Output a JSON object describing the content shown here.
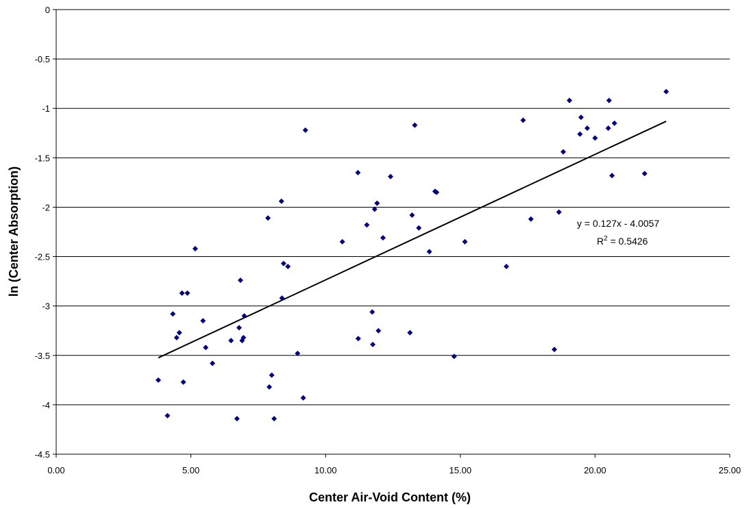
{
  "chart_data": {
    "type": "scatter",
    "title": "",
    "xlabel": "Center Air-Void Content (%)",
    "ylabel": "ln (Center Absorption)",
    "xlim": [
      0,
      25
    ],
    "ylim": [
      -4.5,
      0
    ],
    "x_ticks": [
      "0.00",
      "5.00",
      "10.00",
      "15.00",
      "20.00",
      "25.00"
    ],
    "y_ticks": [
      "0",
      "-0.5",
      "-1",
      "-1.5",
      "-2",
      "-2.5",
      "-3",
      "-3.5",
      "-4",
      "-4.5"
    ],
    "grid": "horizontal",
    "colors": {
      "points": "#000080",
      "trendline": "#000000",
      "grid": "#000000"
    },
    "series": [
      {
        "points": [
          {
            "x": 3.79,
            "y": -3.75
          },
          {
            "x": 4.13,
            "y": -4.11
          },
          {
            "x": 4.33,
            "y": -3.08
          },
          {
            "x": 4.47,
            "y": -3.32
          },
          {
            "x": 4.57,
            "y": -3.27
          },
          {
            "x": 4.67,
            "y": -2.87
          },
          {
            "x": 4.72,
            "y": -3.77
          },
          {
            "x": 4.87,
            "y": -2.87
          },
          {
            "x": 5.16,
            "y": -2.42
          },
          {
            "x": 5.45,
            "y": -3.15
          },
          {
            "x": 5.55,
            "y": -3.42
          },
          {
            "x": 5.8,
            "y": -3.58
          },
          {
            "x": 6.49,
            "y": -3.35
          },
          {
            "x": 6.71,
            "y": -4.14
          },
          {
            "x": 6.79,
            "y": -3.22
          },
          {
            "x": 6.84,
            "y": -2.74
          },
          {
            "x": 6.9,
            "y": -3.35
          },
          {
            "x": 6.95,
            "y": -3.32
          },
          {
            "x": 6.98,
            "y": -3.1
          },
          {
            "x": 7.86,
            "y": -2.11
          },
          {
            "x": 7.91,
            "y": -3.82
          },
          {
            "x": 8.0,
            "y": -3.7
          },
          {
            "x": 8.09,
            "y": -4.14
          },
          {
            "x": 8.36,
            "y": -1.94
          },
          {
            "x": 8.38,
            "y": -2.92
          },
          {
            "x": 8.44,
            "y": -2.57
          },
          {
            "x": 8.6,
            "y": -2.6
          },
          {
            "x": 8.96,
            "y": -3.48
          },
          {
            "x": 9.17,
            "y": -3.93
          },
          {
            "x": 9.25,
            "y": -1.22
          },
          {
            "x": 10.62,
            "y": -2.35
          },
          {
            "x": 11.2,
            "y": -1.65
          },
          {
            "x": 11.21,
            "y": -3.33
          },
          {
            "x": 11.53,
            "y": -2.18
          },
          {
            "x": 11.73,
            "y": -3.06
          },
          {
            "x": 11.75,
            "y": -3.39
          },
          {
            "x": 11.82,
            "y": -2.02
          },
          {
            "x": 11.91,
            "y": -1.96
          },
          {
            "x": 11.96,
            "y": -3.25
          },
          {
            "x": 12.13,
            "y": -2.31
          },
          {
            "x": 12.41,
            "y": -1.69
          },
          {
            "x": 13.13,
            "y": -3.27
          },
          {
            "x": 13.21,
            "y": -2.08
          },
          {
            "x": 13.31,
            "y": -1.17
          },
          {
            "x": 13.46,
            "y": -2.21
          },
          {
            "x": 13.85,
            "y": -2.45
          },
          {
            "x": 14.06,
            "y": -1.84
          },
          {
            "x": 14.12,
            "y": -1.85
          },
          {
            "x": 14.77,
            "y": -3.51
          },
          {
            "x": 15.17,
            "y": -2.35
          },
          {
            "x": 16.71,
            "y": -2.6
          },
          {
            "x": 17.33,
            "y": -1.12
          },
          {
            "x": 17.62,
            "y": -2.12
          },
          {
            "x": 18.49,
            "y": -3.44
          },
          {
            "x": 18.66,
            "y": -2.05
          },
          {
            "x": 18.82,
            "y": -1.44
          },
          {
            "x": 19.05,
            "y": -0.92
          },
          {
            "x": 19.44,
            "y": -1.26
          },
          {
            "x": 19.48,
            "y": -1.09
          },
          {
            "x": 19.71,
            "y": -1.2
          },
          {
            "x": 20.0,
            "y": -1.3
          },
          {
            "x": 20.49,
            "y": -1.2
          },
          {
            "x": 20.52,
            "y": -0.92
          },
          {
            "x": 20.63,
            "y": -1.68
          },
          {
            "x": 20.72,
            "y": -1.15
          },
          {
            "x": 21.84,
            "y": -1.66
          },
          {
            "x": 22.64,
            "y": -0.83
          }
        ]
      }
    ],
    "trendline": {
      "type": "linear",
      "slope": 0.127,
      "intercept": -4.0057,
      "x_range": [
        3.79,
        22.64
      ],
      "equation_label": "y = 0.127x - 4.0057",
      "r2_prefix": "R",
      "r2_sup": "2",
      "r2_value": " = 0.5426"
    }
  }
}
